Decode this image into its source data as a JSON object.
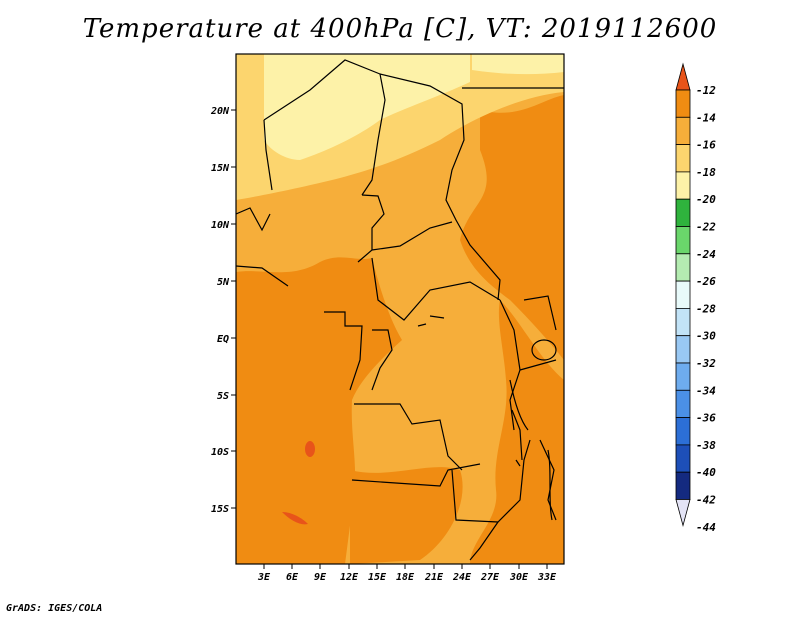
{
  "title": "Temperature at 400hPa [C], VT: 2019112600",
  "credit": "GrADS: IGES/COLA",
  "map": {
    "lat_labels": [
      "20N",
      "15N",
      "10N",
      "5N",
      "EQ",
      "5S",
      "10S",
      "15S"
    ],
    "lon_labels": [
      "3E",
      "6E",
      "9E",
      "12E",
      "15E",
      "18E",
      "21E",
      "24E",
      "27E",
      "30E",
      "33E"
    ]
  },
  "colorbar": {
    "labels": [
      "-12",
      "-14",
      "-16",
      "-18",
      "-20",
      "-22",
      "-24",
      "-26",
      "-28",
      "-30",
      "-32",
      "-34",
      "-36",
      "-38",
      "-40",
      "-42",
      "-44"
    ],
    "colors": [
      "#e8541a",
      "#f08c12",
      "#f6ae3a",
      "#fcd56e",
      "#fdf2a8",
      "#2fb33d",
      "#6ad66b",
      "#b4ecb1",
      "#e8fafa",
      "#c2e3f7",
      "#99c8f3",
      "#6eacee",
      "#4b90e6",
      "#2c6fd6",
      "#1d4fb8",
      "#142a80",
      "#e4e4f6"
    ]
  }
}
